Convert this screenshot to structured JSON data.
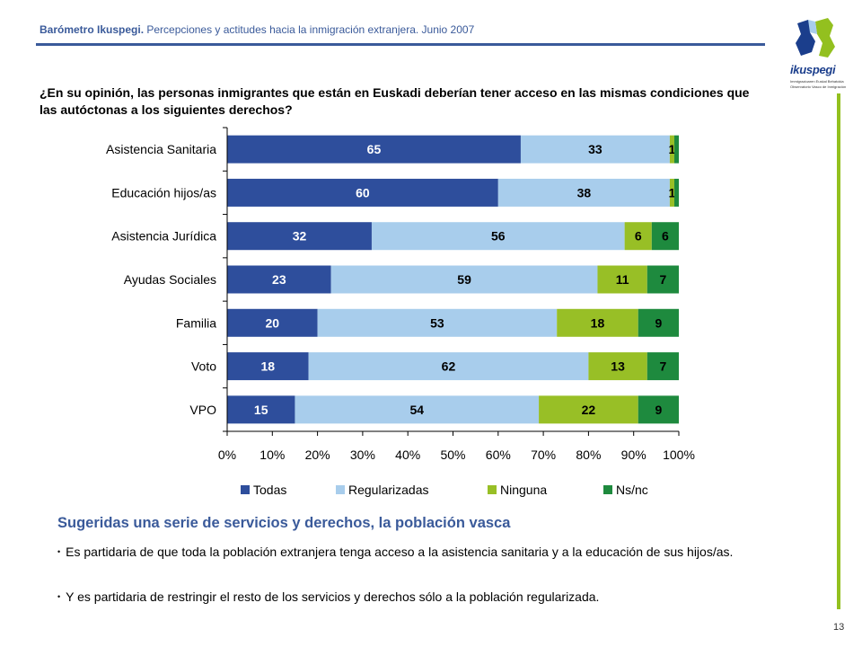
{
  "header": {
    "title_bold": "Barómetro Ikuspegi.",
    "title_rest": "Percepciones y actitudes hacia la inmigración extranjera. Junio 2007"
  },
  "logo": {
    "wordmark": "ikuspegi",
    "tagline_1": "Immigrazioaren Euskal Behatokia",
    "tagline_2": "Observatorio Vasco de Inmigración",
    "colors": {
      "blue": "#1b3e8c",
      "green": "#93c01f"
    }
  },
  "question": "¿En su opinión, las personas inmigrantes que están en Euskadi deberían tener acceso en las mismas condiciones que las autóctonas a los siguientes derechos?",
  "chart_data": {
    "type": "bar",
    "orientation": "horizontal",
    "stacked": "percent",
    "categories": [
      "Asistencia Sanitaria",
      "Educación hijos/as",
      "Asistencia Jurídica",
      "Ayudas Sociales",
      "Familia",
      "Voto",
      "VPO"
    ],
    "series": [
      {
        "name": "Todas",
        "color": "#2e4e9c",
        "values": [
          65,
          60,
          32,
          23,
          20,
          18,
          15
        ]
      },
      {
        "name": "Regularizadas",
        "color": "#a8cdec",
        "values": [
          33,
          38,
          56,
          59,
          53,
          62,
          54
        ]
      },
      {
        "name": "Ninguna",
        "color": "#98bf26",
        "values": [
          1,
          1,
          6,
          11,
          18,
          13,
          22
        ]
      },
      {
        "name": "Ns/nc",
        "color": "#1e8a3e",
        "values": [
          1,
          1,
          6,
          7,
          9,
          7,
          9
        ]
      }
    ],
    "data_labels": [
      [
        "65",
        "33",
        "1",
        ""
      ],
      [
        "60",
        "38",
        "1",
        ""
      ],
      [
        "32",
        "56",
        "6",
        "6"
      ],
      [
        "23",
        "59",
        "11",
        "7"
      ],
      [
        "20",
        "53",
        "18",
        "9"
      ],
      [
        "18",
        "62",
        "13",
        "7"
      ],
      [
        "15",
        "54",
        "22",
        "9"
      ]
    ],
    "xlim": [
      0,
      100
    ],
    "x_ticks": [
      "0%",
      "10%",
      "20%",
      "30%",
      "40%",
      "50%",
      "60%",
      "70%",
      "80%",
      "90%",
      "100%"
    ],
    "legend": "bottom",
    "grid": false
  },
  "summary": {
    "title": "Sugeridas una serie de servicios y derechos, la población vasca",
    "bullet_mark": "•",
    "bullets": [
      "Es partidaria de que toda la población extranjera tenga acceso a la asistencia sanitaria y a la educación de sus hijos/as.",
      "Y es partidaria de restringir el resto de los servicios y derechos sólo a la población regularizada."
    ]
  },
  "page_number": "13"
}
